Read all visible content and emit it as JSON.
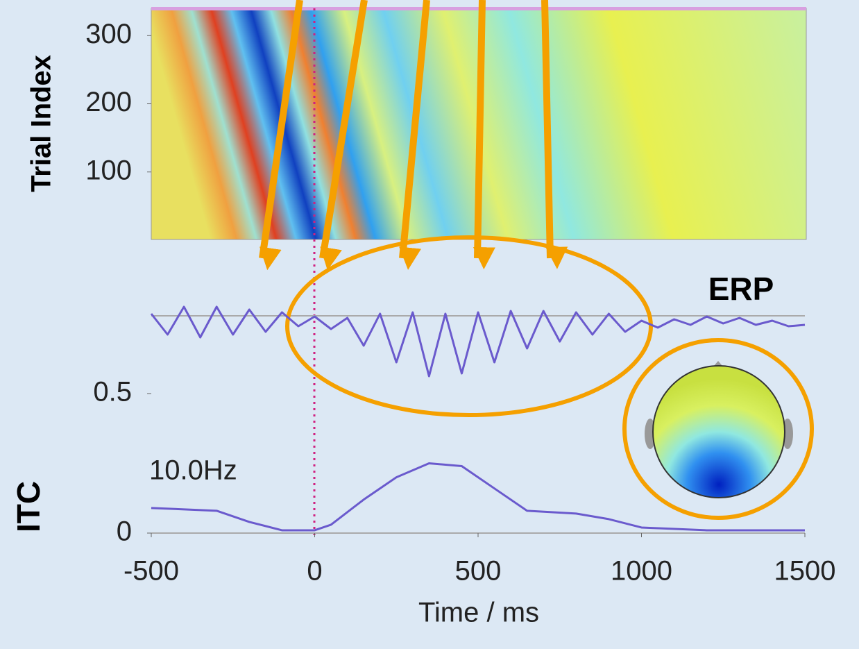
{
  "chart_data": [
    {
      "type": "image",
      "ylabel": "Trial Index",
      "ylim": [
        1,
        340
      ],
      "yticks": [
        100,
        200,
        300
      ]
    },
    {
      "type": "line",
      "title": "ERP",
      "color": "#6a5acd",
      "ylim": [
        -4,
        4
      ],
      "x": [
        -500,
        -450,
        -400,
        -350,
        -300,
        -250,
        -200,
        -150,
        -100,
        -50,
        0,
        50,
        100,
        150,
        200,
        250,
        300,
        350,
        400,
        450,
        500,
        550,
        600,
        650,
        700,
        750,
        800,
        850,
        900,
        950,
        1000,
        1050,
        1100,
        1150,
        1200,
        1250,
        1300,
        1350,
        1400,
        1450,
        1500
      ],
      "values": [
        0.5,
        -1,
        1,
        -1.2,
        1,
        -1,
        0.8,
        -0.8,
        0.6,
        -0.4,
        0.3,
        -0.6,
        0.2,
        -1.8,
        0.5,
        -3,
        0.6,
        -4,
        0.5,
        -3.8,
        0.6,
        -3,
        0.7,
        -2,
        0.7,
        -1.5,
        0.6,
        -1,
        0.5,
        -0.8,
        0,
        -0.5,
        0.1,
        -0.3,
        0.3,
        -0.2,
        0.2,
        -0.3,
        0,
        -0.4,
        -0.3
      ]
    },
    {
      "type": "line",
      "ylabel": "ITC",
      "annotation": "10.0Hz",
      "xlabel": "Time / ms",
      "color": "#6a5acd",
      "xlim": [
        -500,
        1500
      ],
      "xticks": [
        -500,
        0,
        500,
        1000,
        1500
      ],
      "ylim": [
        0,
        0.5
      ],
      "yticks": [
        0,
        0.5
      ],
      "x": [
        -500,
        -300,
        -200,
        -100,
        0,
        50,
        150,
        250,
        350,
        450,
        550,
        650,
        800,
        900,
        1000,
        1200,
        1500
      ],
      "values": [
        0.09,
        0.08,
        0.04,
        0.01,
        0.01,
        0.03,
        0.12,
        0.2,
        0.25,
        0.24,
        0.16,
        0.08,
        0.07,
        0.05,
        0.02,
        0.01,
        0.01
      ]
    }
  ]
}
